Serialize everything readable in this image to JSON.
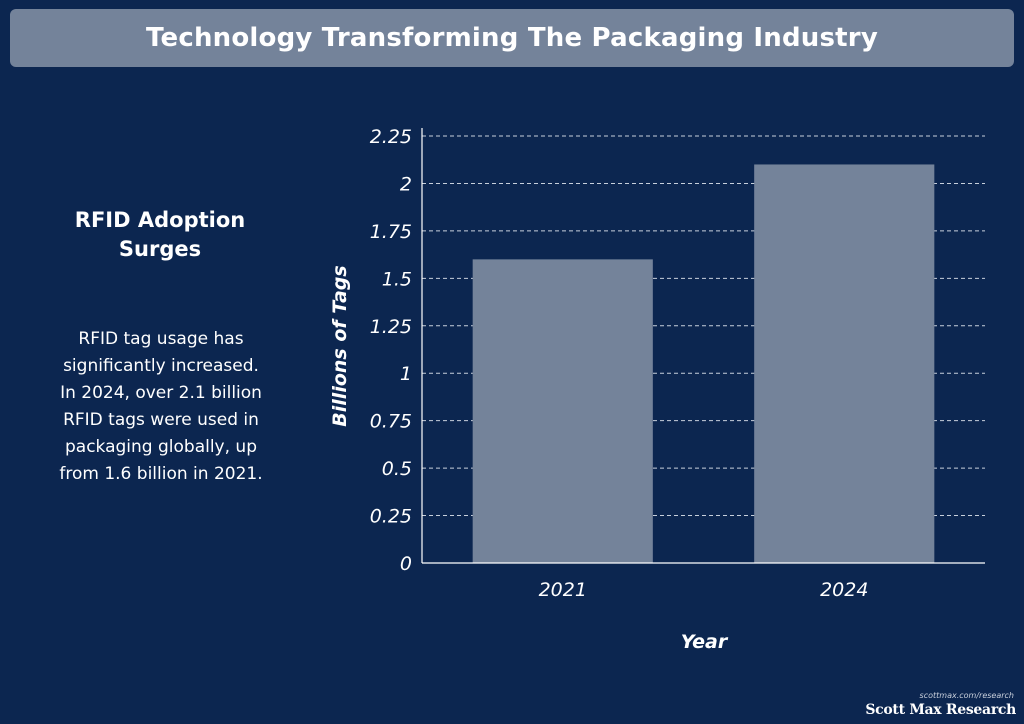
{
  "title": "Technology Transforming The Packaging Industry",
  "sidebar": {
    "heading": "RFID Adoption Surges",
    "body": "RFID tag usage has significantly increased. In 2024, over 2.1 billion RFID tags were used in packaging globally, up from 1.6 billion in 2021."
  },
  "chart_data": {
    "type": "bar",
    "title": "",
    "categories": [
      "2021",
      "2024"
    ],
    "values": [
      1.6,
      2.1
    ],
    "xlabel": "Year",
    "ylabel": "Billions of Tags",
    "ylim": [
      0,
      2.25
    ],
    "yticks": [
      "0",
      "0.25",
      "0.5",
      "0.75",
      "1",
      "1.25",
      "1.5",
      "1.75",
      "2",
      "2.25"
    ],
    "grid": true,
    "bar_color": "#74839a",
    "grid_color": "#c8d0dc"
  },
  "footer": {
    "url": "scottmax.com/research",
    "brand": "Scott Max Research"
  },
  "colors": {
    "background": "#0c2650",
    "title_bar": "#74839a",
    "text": "#ffffff"
  }
}
